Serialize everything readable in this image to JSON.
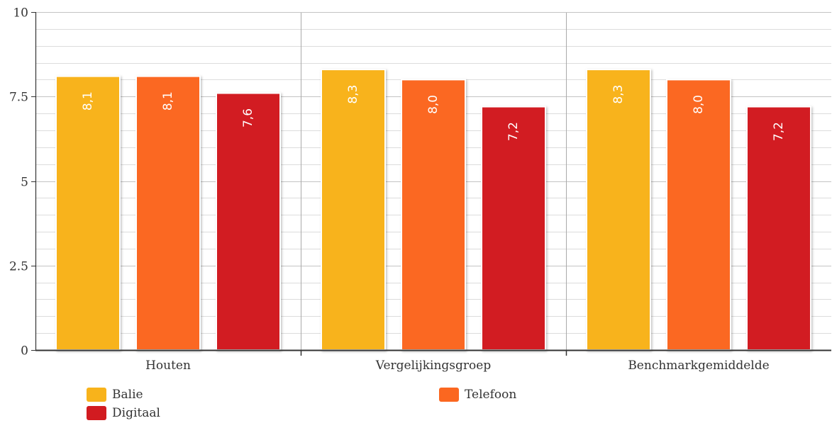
{
  "chart_data": {
    "type": "bar",
    "categories": [
      "Houten",
      "Vergelijkingsgroep",
      "Benchmarkgemiddelde"
    ],
    "series": [
      {
        "name": "Balie",
        "color": "#f8b31b",
        "values": [
          8.1,
          8.3,
          8.3
        ],
        "labels": [
          "8,1",
          "8,3",
          "8,3"
        ]
      },
      {
        "name": "Telefoon",
        "color": "#fb6720",
        "values": [
          8.1,
          8.0,
          8.0
        ],
        "labels": [
          "8,1",
          "8,0",
          "8,0"
        ]
      },
      {
        "name": "Digitaal",
        "color": "#d21b20",
        "values": [
          7.6,
          7.2,
          7.2
        ],
        "labels": [
          "7,6",
          "7,2",
          "7,2"
        ]
      }
    ],
    "title": "",
    "xlabel": "",
    "ylabel": "",
    "ylim": [
      0,
      10
    ],
    "yticks": [
      {
        "value": 0,
        "label": "0"
      },
      {
        "value": 2.5,
        "label": "2.5"
      },
      {
        "value": 5,
        "label": "5"
      },
      {
        "value": 7.5,
        "label": "7.5"
      },
      {
        "value": 10,
        "label": "10"
      }
    ],
    "minor_gridlines_per_major": 5,
    "grid": true,
    "legend_position": "bottom"
  }
}
